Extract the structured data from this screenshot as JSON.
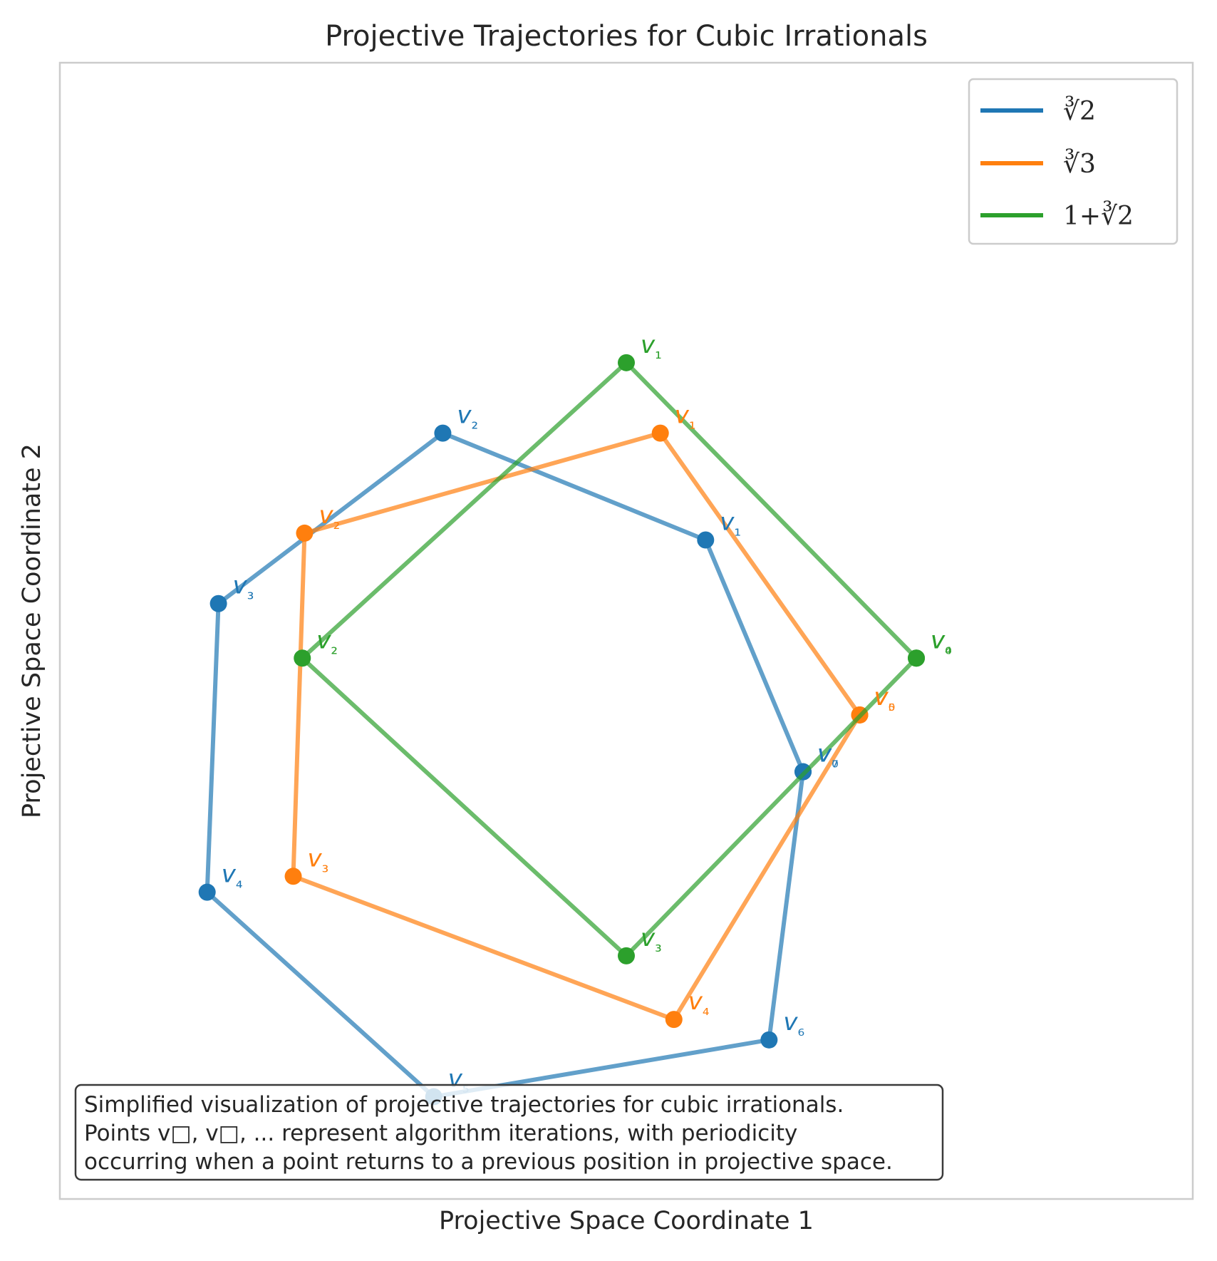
{
  "chart_data": {
    "type": "line",
    "title": "Projective Trajectories for Cubic Irrationals",
    "xlabel": "Projective Space Coordinate 1",
    "ylabel": "Projective Space Coordinate 2",
    "xlim": [
      -2.5,
      2.5
    ],
    "ylim": [
      -2.5,
      2.5
    ],
    "grid": false,
    "legend_position": "top-right",
    "series": [
      {
        "name": "∛2",
        "color": "#1f77b4",
        "points": [
          {
            "label": "v₀",
            "x": 0.78,
            "y": -0.62
          },
          {
            "label": "v₁",
            "x": 0.35,
            "y": 0.4
          },
          {
            "label": "v₂",
            "x": -0.81,
            "y": 0.87
          },
          {
            "label": "v₃",
            "x": -1.8,
            "y": 0.12
          },
          {
            "label": "v₄",
            "x": -1.85,
            "y": -1.15
          },
          {
            "label": "v₅",
            "x": -0.85,
            "y": -2.05
          },
          {
            "label": "v₆",
            "x": 0.63,
            "y": -1.8
          },
          {
            "label": "v₇",
            "x": 0.78,
            "y": -0.62
          }
        ]
      },
      {
        "name": "∛3",
        "color": "#ff7f0e",
        "points": [
          {
            "label": "v₀",
            "x": 1.03,
            "y": -0.37
          },
          {
            "label": "v₁",
            "x": 0.15,
            "y": 0.87
          },
          {
            "label": "v₂",
            "x": -1.42,
            "y": 0.43
          },
          {
            "label": "v₃",
            "x": -1.47,
            "y": -1.08
          },
          {
            "label": "v₄",
            "x": 0.21,
            "y": -1.71
          },
          {
            "label": "v₅",
            "x": 1.03,
            "y": -0.37
          }
        ]
      },
      {
        "name": "1+∛2",
        "color": "#2ca02c",
        "points": [
          {
            "label": "v₀",
            "x": 1.28,
            "y": -0.12
          },
          {
            "label": "v₁",
            "x": 0.0,
            "y": 1.18
          },
          {
            "label": "v₂",
            "x": -1.43,
            "y": -0.12
          },
          {
            "label": "v₃",
            "x": 0.0,
            "y": -1.43
          },
          {
            "label": "v₄",
            "x": 1.28,
            "y": -0.12
          }
        ]
      }
    ],
    "legend": [
      {
        "label": "∛2",
        "color": "#1f77b4"
      },
      {
        "label": "∛3",
        "color": "#ff7f0e"
      },
      {
        "label": "1+∛2",
        "color": "#2ca02c"
      }
    ],
    "annotation": [
      "Simplified visualization of projective trajectories for cubic irrationals.",
      "Points v□, v□, ... represent algorithm iterations, with periodicity",
      "occurring when a point returns to a previous position in projective space."
    ]
  }
}
